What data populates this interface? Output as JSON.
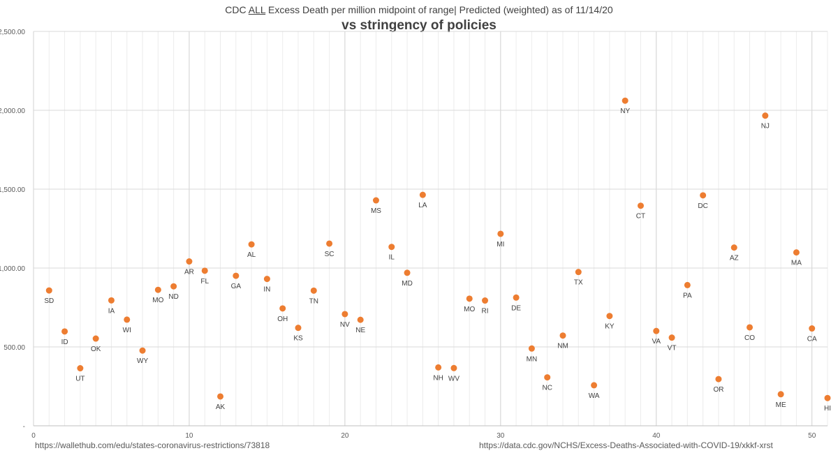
{
  "chart_data": {
    "type": "scatter",
    "title": {
      "before": "CDC ",
      "underlined": "ALL",
      "after": " Excess Death per million midpoint of range| Predicted (weighted)  as of 11/14/20"
    },
    "subtitle": "vs stringency of policies",
    "xlabel": "",
    "ylabel": "",
    "xlim": [
      0,
      51
    ],
    "ylim": [
      0,
      2500
    ],
    "x_ticks": [
      "0",
      "10",
      "20",
      "30",
      "40",
      "50"
    ],
    "y_ticks": [
      "-",
      "500.00",
      "1,000.00",
      "1,500.00",
      "2,000.00",
      "2,500.00"
    ],
    "grid": true,
    "marker_color": "#ED7D31",
    "series": [
      {
        "points": [
          {
            "x": 1,
            "y": 858,
            "label": "SD"
          },
          {
            "x": 2,
            "y": 598,
            "label": "ID"
          },
          {
            "x": 3,
            "y": 365,
            "label": "UT"
          },
          {
            "x": 4,
            "y": 553,
            "label": "OK"
          },
          {
            "x": 5,
            "y": 795,
            "label": "IA"
          },
          {
            "x": 6,
            "y": 673,
            "label": "WI"
          },
          {
            "x": 7,
            "y": 477,
            "label": "WY"
          },
          {
            "x": 8,
            "y": 862,
            "label": "MO"
          },
          {
            "x": 9,
            "y": 884,
            "label": "ND"
          },
          {
            "x": 10,
            "y": 1042,
            "label": "AR"
          },
          {
            "x": 11,
            "y": 983,
            "label": "FL"
          },
          {
            "x": 12,
            "y": 186,
            "label": "AK"
          },
          {
            "x": 13,
            "y": 951,
            "label": "GA"
          },
          {
            "x": 14,
            "y": 1150,
            "label": "AL"
          },
          {
            "x": 15,
            "y": 931,
            "label": "IN"
          },
          {
            "x": 16,
            "y": 744,
            "label": "OH"
          },
          {
            "x": 17,
            "y": 621,
            "label": "KS"
          },
          {
            "x": 18,
            "y": 857,
            "label": "TN"
          },
          {
            "x": 19,
            "y": 1155,
            "label": "SC"
          },
          {
            "x": 20,
            "y": 708,
            "label": "NV"
          },
          {
            "x": 21,
            "y": 672,
            "label": "NE"
          },
          {
            "x": 22,
            "y": 1429,
            "label": "MS"
          },
          {
            "x": 23,
            "y": 1134,
            "label": "IL"
          },
          {
            "x": 24,
            "y": 970,
            "label": "MD"
          },
          {
            "x": 25,
            "y": 1464,
            "label": "LA"
          },
          {
            "x": 26,
            "y": 370,
            "label": "NH"
          },
          {
            "x": 27,
            "y": 366,
            "label": "WV"
          },
          {
            "x": 28,
            "y": 806,
            "label": "MO"
          },
          {
            "x": 29,
            "y": 794,
            "label": "RI"
          },
          {
            "x": 30,
            "y": 1217,
            "label": "MI"
          },
          {
            "x": 31,
            "y": 813,
            "label": "DE"
          },
          {
            "x": 32,
            "y": 490,
            "label": "MN"
          },
          {
            "x": 33,
            "y": 307,
            "label": "NC"
          },
          {
            "x": 34,
            "y": 572,
            "label": "NM"
          },
          {
            "x": 35,
            "y": 975,
            "label": "TX"
          },
          {
            "x": 36,
            "y": 257,
            "label": "WA"
          },
          {
            "x": 37,
            "y": 696,
            "label": "KY"
          },
          {
            "x": 38,
            "y": 2061,
            "label": "NY"
          },
          {
            "x": 39,
            "y": 1395,
            "label": "CT"
          },
          {
            "x": 40,
            "y": 601,
            "label": "VA"
          },
          {
            "x": 41,
            "y": 559,
            "label": "VT"
          },
          {
            "x": 42,
            "y": 892,
            "label": "PA"
          },
          {
            "x": 43,
            "y": 1461,
            "label": "DC"
          },
          {
            "x": 44,
            "y": 296,
            "label": "OR"
          },
          {
            "x": 45,
            "y": 1130,
            "label": "AZ"
          },
          {
            "x": 46,
            "y": 624,
            "label": "CO"
          },
          {
            "x": 47,
            "y": 1966,
            "label": "NJ"
          },
          {
            "x": 48,
            "y": 200,
            "label": "ME"
          },
          {
            "x": 49,
            "y": 1099,
            "label": "MA"
          },
          {
            "x": 50,
            "y": 617,
            "label": "CA"
          },
          {
            "x": 51,
            "y": 176,
            "label": "HI"
          }
        ]
      }
    ]
  },
  "sources": {
    "left": "https://wallethub.com/edu/states-coronavirus-restrictions/73818",
    "right": "https://data.cdc.gov/NCHS/Excess-Deaths-Associated-with-COVID-19/xkkf-xrst"
  }
}
